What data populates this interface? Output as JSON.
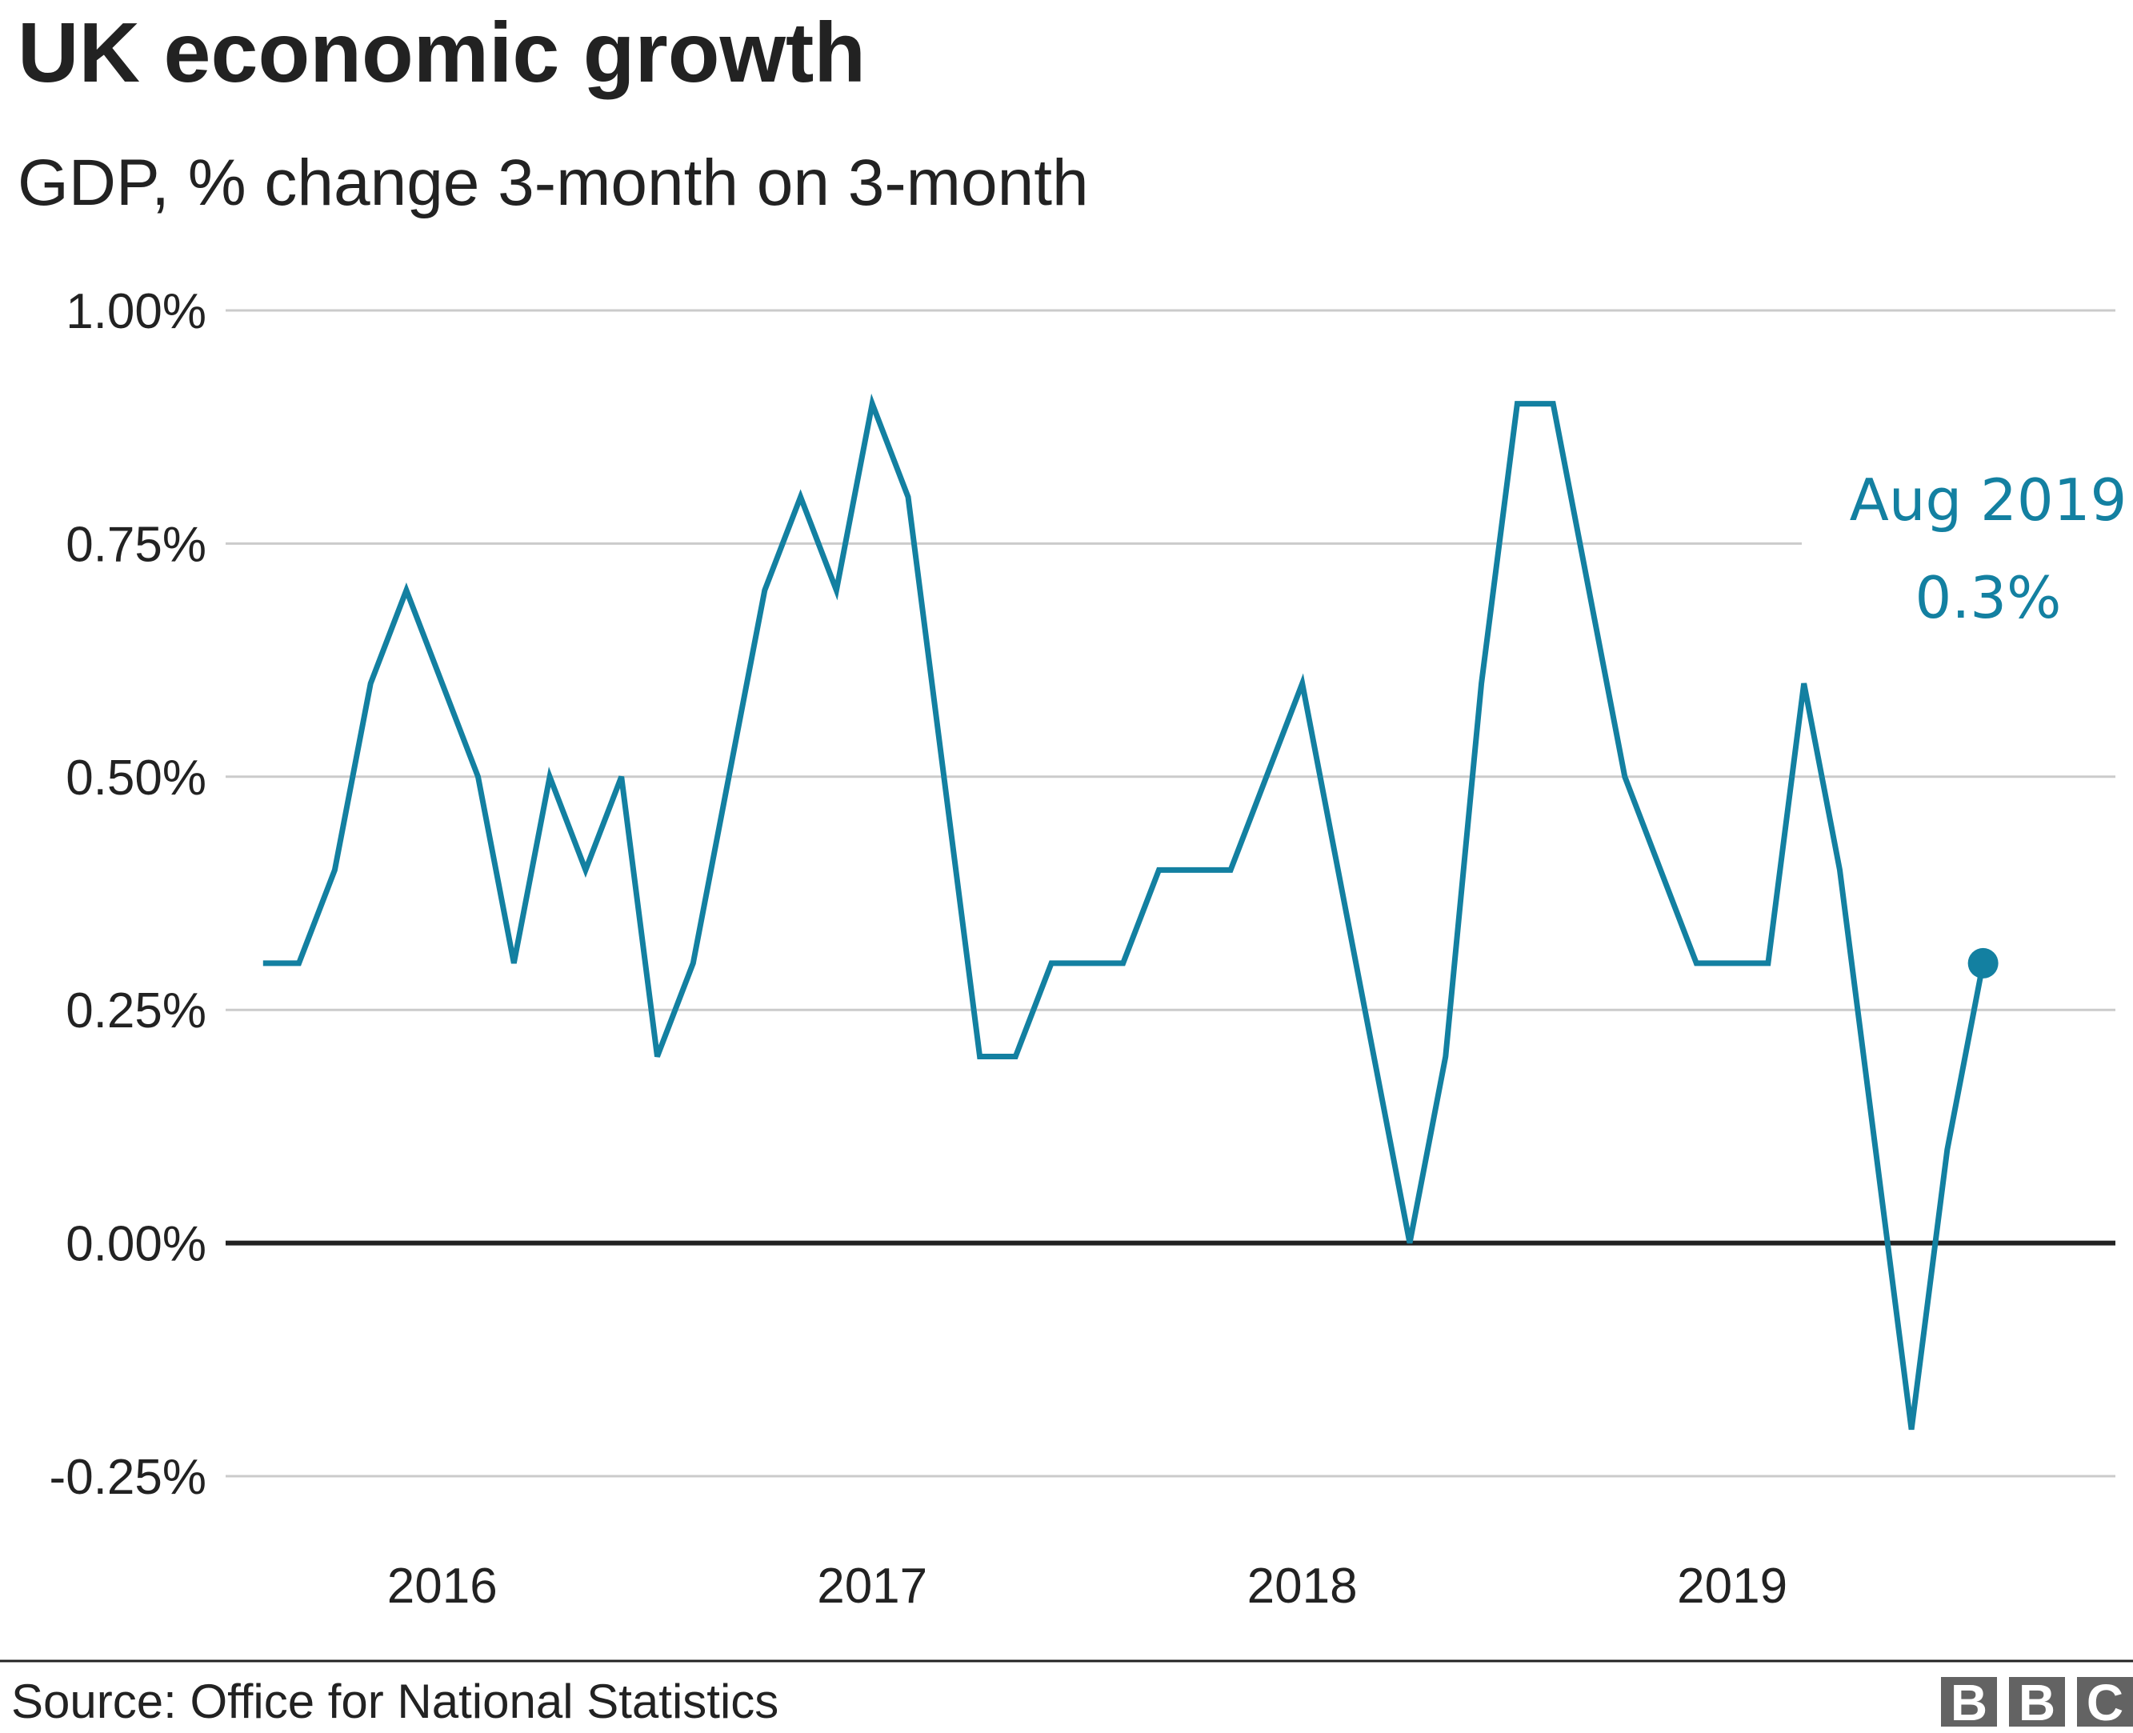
{
  "title": "UK economic growth",
  "subtitle": "GDP, % change 3-month on 3-month",
  "source": "Source: Office for National Statistics",
  "logo": {
    "letters": [
      "B",
      "B",
      "C"
    ],
    "color": "#636363"
  },
  "colors": {
    "series": "#1380A1",
    "grid": "#cbcbcb",
    "zero_line": "#222222",
    "text": "#222222"
  },
  "chart_data": {
    "type": "line",
    "title": "UK economic growth",
    "subtitle": "GDP, % change 3-month on 3-month",
    "xlabel": "",
    "ylabel": "",
    "ylim": [
      -0.25,
      1.0
    ],
    "xlim": [
      "2015-07",
      "2019-11"
    ],
    "y_ticks": [
      {
        "value": -0.25,
        "label": "-0.25%"
      },
      {
        "value": 0,
        "label": "0.00%"
      },
      {
        "value": 0.25,
        "label": "0.25%"
      },
      {
        "value": 0.5,
        "label": "0.50%"
      },
      {
        "value": 0.75,
        "label": "0.75%"
      },
      {
        "value": 1.0,
        "label": "1.00%"
      }
    ],
    "x_ticks": [
      {
        "value": "2016-01",
        "label": "2016"
      },
      {
        "value": "2017-01",
        "label": "2017"
      },
      {
        "value": "2018-01",
        "label": "2018"
      },
      {
        "value": "2019-01",
        "label": "2019"
      }
    ],
    "grid": true,
    "legend": "none",
    "series": [
      {
        "x": [
          "2015-08",
          "2015-09",
          "2015-10",
          "2015-11",
          "2015-12",
          "2016-01",
          "2016-02",
          "2016-03",
          "2016-04",
          "2016-05",
          "2016-06",
          "2016-07",
          "2016-08",
          "2016-09",
          "2016-10",
          "2016-11",
          "2016-12",
          "2017-01",
          "2017-02",
          "2017-03",
          "2017-04",
          "2017-05",
          "2017-06",
          "2017-07",
          "2017-08",
          "2017-09",
          "2017-10",
          "2017-11",
          "2017-12",
          "2018-01",
          "2018-02",
          "2018-03",
          "2018-04",
          "2018-05",
          "2018-06",
          "2018-07",
          "2018-08",
          "2018-09",
          "2018-10",
          "2018-11",
          "2018-12",
          "2019-01",
          "2019-02",
          "2019-03",
          "2019-04",
          "2019-05",
          "2019-06",
          "2019-07",
          "2019-08"
        ],
        "values": [
          0.3,
          0.3,
          0.4,
          0.6,
          0.7,
          0.6,
          0.5,
          0.3,
          0.5,
          0.4,
          0.5,
          0.2,
          0.3,
          0.5,
          0.7,
          0.8,
          0.7,
          0.9,
          0.8,
          0.5,
          0.2,
          0.2,
          0.3,
          0.3,
          0.3,
          0.4,
          0.4,
          0.4,
          0.5,
          0.6,
          0.4,
          0.2,
          0.0,
          0.2,
          0.6,
          0.9,
          0.9,
          0.7,
          0.5,
          0.4,
          0.3,
          0.3,
          0.3,
          0.6,
          0.4,
          0.1,
          -0.2,
          0.1,
          0.3
        ]
      }
    ],
    "annotations": [
      {
        "x": "2019-08",
        "value": 0.3,
        "lines": [
          "Aug 2019",
          "0.3%"
        ]
      }
    ]
  }
}
